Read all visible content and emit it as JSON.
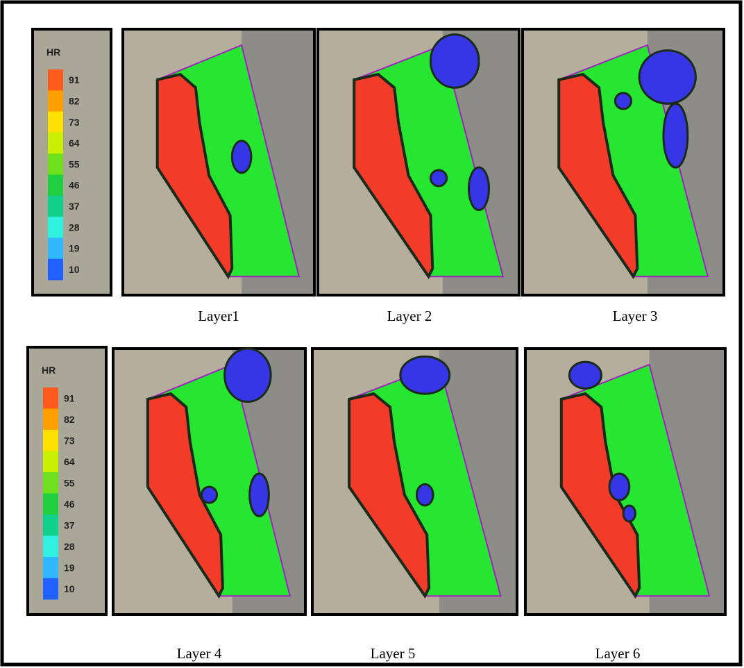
{
  "legend": {
    "title": "HR",
    "labels": [
      "91",
      "82",
      "73",
      "64",
      "55",
      "46",
      "37",
      "28",
      "19",
      "10"
    ]
  },
  "panels": [
    {
      "caption": "Layer1"
    },
    {
      "caption": "Layer 2"
    },
    {
      "caption": "Layer 3"
    },
    {
      "caption": "Layer 4"
    },
    {
      "caption": "Layer 5"
    },
    {
      "caption": "Layer 6"
    }
  ]
}
